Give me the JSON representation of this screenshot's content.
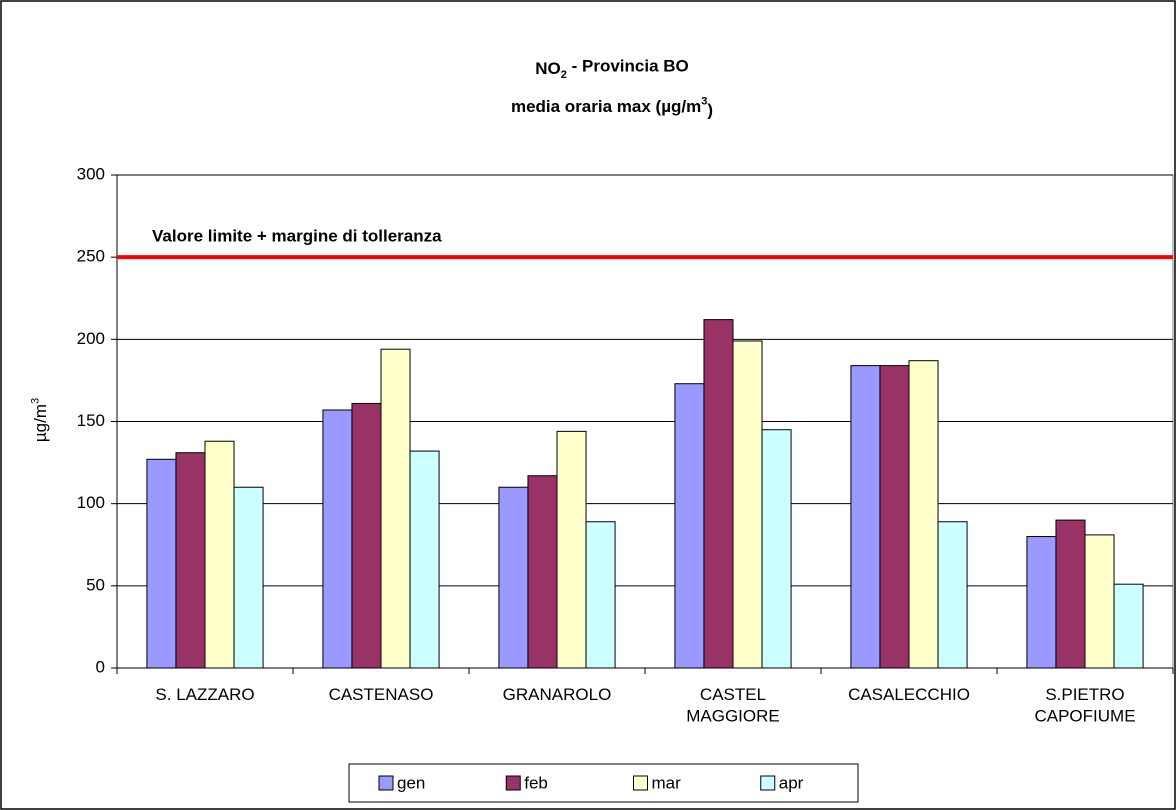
{
  "chart_data": {
    "type": "bar",
    "title": {
      "parts": [
        "NO",
        "2",
        " - Provincia BO"
      ]
    },
    "subtitle": {
      "parts": [
        "media oraria max (µg/m",
        "3",
        ")"
      ]
    },
    "y_label": {
      "parts": [
        "µg/m",
        "3"
      ]
    },
    "categories": [
      [
        "S. LAZZARO"
      ],
      [
        "CASTENASO"
      ],
      [
        "GRANAROLO"
      ],
      [
        "CASTEL",
        "MAGGIORE"
      ],
      [
        "CASALECCHIO"
      ],
      [
        "S.PIETRO",
        "CAPOFIUME"
      ]
    ],
    "series": [
      {
        "name": "gen",
        "color": "#9999ff",
        "values": [
          127,
          157,
          110,
          173,
          184,
          80
        ]
      },
      {
        "name": "feb",
        "color": "#993366",
        "values": [
          131,
          161,
          117,
          212,
          184,
          90
        ]
      },
      {
        "name": "mar",
        "color": "#ffffcc",
        "values": [
          138,
          194,
          144,
          199,
          187,
          81
        ]
      },
      {
        "name": "apr",
        "color": "#ccffff",
        "values": [
          110,
          132,
          89,
          145,
          89,
          51
        ]
      }
    ],
    "ylim": [
      0,
      300
    ],
    "yticks": [
      0,
      50,
      100,
      150,
      200,
      250,
      300
    ],
    "grid": true,
    "legend": "bottom",
    "reference_line": {
      "label": "Valore limite + margine di tolleranza",
      "value": 250,
      "color": "#ff0000"
    }
  }
}
